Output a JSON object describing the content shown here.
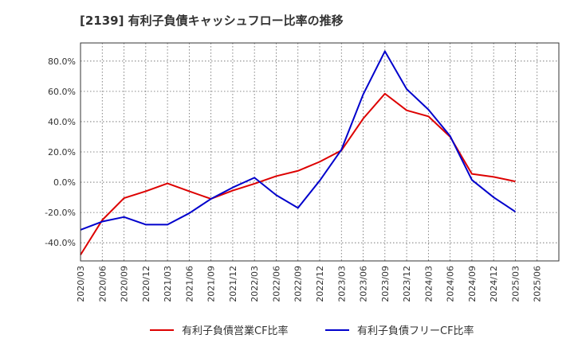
{
  "chart_data": {
    "type": "line",
    "title": "[2139]  有利子負債キャッシュフロー比率の推移",
    "xlabel": "",
    "ylabel": "",
    "ylim": [
      -52,
      92
    ],
    "yticks": [
      -40,
      -20,
      0,
      20,
      40,
      60,
      80
    ],
    "ytick_labels": [
      "-40.0%",
      "-20.0%",
      "0.0%",
      "20.0%",
      "40.0%",
      "60.0%",
      "80.0%"
    ],
    "x_ticks": [
      "2020/03",
      "2020/06",
      "2020/09",
      "2020/12",
      "2021/03",
      "2021/06",
      "2021/09",
      "2021/12",
      "2022/03",
      "2022/06",
      "2022/09",
      "2022/12",
      "2023/03",
      "2023/06",
      "2023/09",
      "2023/12",
      "2024/03",
      "2024/06",
      "2024/09",
      "2024/12",
      "2025/03",
      "2025/06"
    ],
    "grid": true,
    "legend_position": "bottom",
    "series": [
      {
        "name": "有利子負債営業CF比率",
        "color": "#dd0000",
        "values": [
          -48,
          -25,
          -10.5,
          -6,
          -0.8,
          -6,
          -11,
          -5.5,
          -1,
          4,
          7.5,
          13.5,
          21,
          42,
          58.5,
          47.5,
          43.5,
          30,
          5.5,
          3.5,
          0.5,
          null
        ]
      },
      {
        "name": "有利子負債フリーCF比率",
        "color": "#0000cc",
        "values": [
          -31.5,
          -26,
          -23,
          -28,
          -28,
          -20.5,
          -11,
          -3.5,
          3,
          -8.5,
          -17,
          1,
          21.5,
          58,
          86.5,
          61.5,
          48,
          30.5,
          1.5,
          -10,
          -19.5,
          null
        ]
      }
    ]
  }
}
